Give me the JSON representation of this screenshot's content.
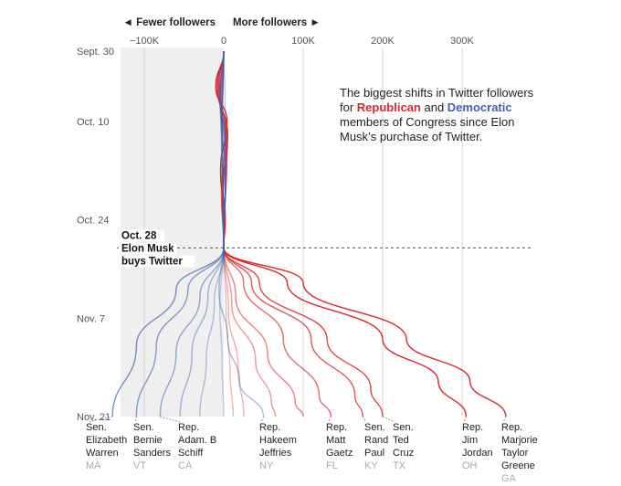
{
  "chart_data": {
    "type": "line",
    "title": "",
    "xlabel": "",
    "ylabel": "",
    "direction_labels": {
      "left": "◄ Fewer followers",
      "right": "More followers ►"
    },
    "x_ticks": [
      {
        "value": -100000,
        "label": "−100K"
      },
      {
        "value": 0,
        "label": "0"
      },
      {
        "value": 100000,
        "label": "100K"
      },
      {
        "value": 200000,
        "label": "200K"
      },
      {
        "value": 300000,
        "label": "300K"
      }
    ],
    "y_ticks": [
      {
        "date": "2022-09-30",
        "label": "Sept. 30"
      },
      {
        "date": "2022-10-10",
        "label": "Oct. 10"
      },
      {
        "date": "2022-10-24",
        "label": "Oct. 24"
      },
      {
        "date": "2022-11-07",
        "label": "Nov. 7"
      },
      {
        "date": "2022-11-21",
        "label": "Nov. 21"
      }
    ],
    "xlim": [
      -130000,
      380000
    ],
    "ylim": [
      "2022-09-30",
      "2022-11-21"
    ],
    "grid": true,
    "shaded_region": {
      "x_from": -130000,
      "x_to": 0
    },
    "event": {
      "date": "2022-10-28",
      "lines": [
        "Oct. 28",
        "Elon Musk",
        "buys Twitter"
      ]
    },
    "note": {
      "pre": "The biggest shifts in Twitter followers for ",
      "rep": "Republican",
      "mid": " and ",
      "dem": "Democratic",
      "post": " members of Congress since Elon Musk’s purchase of Twitter."
    },
    "colors": {
      "republican": "#d62a2e",
      "democratic": "#3e63b0",
      "shade": "#efefef"
    },
    "labeled_members": [
      {
        "title": "Sen.",
        "name": [
          "Elizabeth",
          "Warren"
        ],
        "state": "MA",
        "party": "D",
        "final": -140000
      },
      {
        "title": "Sen.",
        "name": [
          "Bernie",
          "Sanders"
        ],
        "state": "VT",
        "party": "D",
        "final": -110000
      },
      {
        "title": "Rep.",
        "name": [
          "Adam. B",
          "Schiff"
        ],
        "state": "CA",
        "party": "D",
        "final": -80000
      },
      {
        "title": "Rep.",
        "name": [
          "Hakeem",
          "Jeffries"
        ],
        "state": "NY",
        "party": "D",
        "final": 50000
      },
      {
        "title": "Rep.",
        "name": [
          "Matt",
          "Gaetz"
        ],
        "state": "FL",
        "party": "R",
        "final": 135000
      },
      {
        "title": "Sen.",
        "name": [
          "Rand",
          "Paul"
        ],
        "state": "KY",
        "party": "R",
        "final": 175000
      },
      {
        "title": "Sen.",
        "name": [
          "Ted",
          "Cruz"
        ],
        "state": "TX",
        "party": "R",
        "final": 200000
      },
      {
        "title": "Rep.",
        "name": [
          "Jim",
          "Jordan"
        ],
        "state": "OH",
        "party": "R",
        "final": 305000
      },
      {
        "title": "Rep.",
        "name": [
          "Marjorie",
          "Taylor",
          "Greene"
        ],
        "state": "GA",
        "party": "R",
        "final": 355000
      }
    ],
    "series": [
      {
        "party": "R",
        "final": 355000,
        "points": [
          [
            0,
            "2022-09-30"
          ],
          [
            -10000,
            "2022-10-05"
          ],
          [
            4000,
            "2022-10-10"
          ],
          [
            -4000,
            "2022-10-17"
          ],
          [
            2000,
            "2022-10-24"
          ],
          [
            0,
            "2022-10-28"
          ],
          [
            100000,
            "2022-11-02"
          ],
          [
            230000,
            "2022-11-10"
          ],
          [
            310000,
            "2022-11-16"
          ],
          [
            355000,
            "2022-11-21"
          ]
        ]
      },
      {
        "party": "R",
        "final": 305000,
        "points": [
          [
            0,
            "2022-09-30"
          ],
          [
            -8000,
            "2022-10-05"
          ],
          [
            5000,
            "2022-10-12"
          ],
          [
            -2000,
            "2022-10-20"
          ],
          [
            0,
            "2022-10-28"
          ],
          [
            80000,
            "2022-11-02"
          ],
          [
            200000,
            "2022-11-10"
          ],
          [
            270000,
            "2022-11-16"
          ],
          [
            305000,
            "2022-11-21"
          ]
        ]
      },
      {
        "party": "R",
        "final": 200000,
        "points": [
          [
            0,
            "2022-09-30"
          ],
          [
            -6000,
            "2022-10-05"
          ],
          [
            3000,
            "2022-10-12"
          ],
          [
            -1000,
            "2022-10-22"
          ],
          [
            0,
            "2022-10-28"
          ],
          [
            45000,
            "2022-11-02"
          ],
          [
            130000,
            "2022-11-10"
          ],
          [
            185000,
            "2022-11-17"
          ],
          [
            200000,
            "2022-11-21"
          ]
        ]
      },
      {
        "party": "R",
        "final": 175000,
        "points": [
          [
            0,
            "2022-09-30"
          ],
          [
            -5000,
            "2022-10-06"
          ],
          [
            4000,
            "2022-10-14"
          ],
          [
            0,
            "2022-10-28"
          ],
          [
            35000,
            "2022-11-02"
          ],
          [
            110000,
            "2022-11-10"
          ],
          [
            165000,
            "2022-11-18"
          ],
          [
            175000,
            "2022-11-21"
          ]
        ]
      },
      {
        "party": "R",
        "final": 135000,
        "points": [
          [
            0,
            "2022-09-30"
          ],
          [
            -7000,
            "2022-10-04"
          ],
          [
            2000,
            "2022-10-12"
          ],
          [
            -3000,
            "2022-10-20"
          ],
          [
            0,
            "2022-10-28"
          ],
          [
            25000,
            "2022-11-02"
          ],
          [
            75000,
            "2022-11-10"
          ],
          [
            120000,
            "2022-11-18"
          ],
          [
            135000,
            "2022-11-21"
          ]
        ]
      },
      {
        "party": "R",
        "final": 100000,
        "points": [
          [
            0,
            "2022-09-30"
          ],
          [
            -4000,
            "2022-10-06"
          ],
          [
            3000,
            "2022-10-15"
          ],
          [
            0,
            "2022-10-28"
          ],
          [
            15000,
            "2022-11-04"
          ],
          [
            55000,
            "2022-11-12"
          ],
          [
            90000,
            "2022-11-19"
          ],
          [
            100000,
            "2022-11-21"
          ]
        ]
      },
      {
        "party": "R",
        "final": 65000,
        "points": [
          [
            0,
            "2022-09-30"
          ],
          [
            -3000,
            "2022-10-08"
          ],
          [
            2000,
            "2022-10-18"
          ],
          [
            0,
            "2022-10-28"
          ],
          [
            10000,
            "2022-11-05"
          ],
          [
            40000,
            "2022-11-13"
          ],
          [
            60000,
            "2022-11-19"
          ],
          [
            65000,
            "2022-11-21"
          ]
        ]
      },
      {
        "party": "R",
        "final": 25000,
        "points": [
          [
            0,
            "2022-09-30"
          ],
          [
            -2000,
            "2022-10-10"
          ],
          [
            0,
            "2022-10-28"
          ],
          [
            6000,
            "2022-11-06"
          ],
          [
            18000,
            "2022-11-14"
          ],
          [
            25000,
            "2022-11-21"
          ]
        ]
      },
      {
        "party": "R",
        "final": 12000,
        "points": [
          [
            0,
            "2022-09-30"
          ],
          [
            -2000,
            "2022-10-12"
          ],
          [
            0,
            "2022-10-28"
          ],
          [
            3000,
            "2022-11-06"
          ],
          [
            8000,
            "2022-11-15"
          ],
          [
            12000,
            "2022-11-21"
          ]
        ]
      },
      {
        "party": "D",
        "final": 50000,
        "points": [
          [
            0,
            "2022-09-30"
          ],
          [
            -4000,
            "2022-10-05"
          ],
          [
            3000,
            "2022-10-15"
          ],
          [
            0,
            "2022-10-28"
          ],
          [
            -6000,
            "2022-11-03"
          ],
          [
            5000,
            "2022-11-10"
          ],
          [
            20000,
            "2022-11-16"
          ],
          [
            50000,
            "2022-11-21"
          ]
        ]
      },
      {
        "party": "D",
        "final": 0,
        "points": [
          [
            0,
            "2022-09-30"
          ],
          [
            2000,
            "2022-10-08"
          ],
          [
            -1000,
            "2022-10-20"
          ],
          [
            0,
            "2022-10-28"
          ],
          [
            -5000,
            "2022-11-05"
          ],
          [
            -2000,
            "2022-11-14"
          ],
          [
            0,
            "2022-11-21"
          ]
        ]
      },
      {
        "party": "D",
        "final": -30000,
        "points": [
          [
            0,
            "2022-09-30"
          ],
          [
            -3000,
            "2022-10-10"
          ],
          [
            0,
            "2022-10-28"
          ],
          [
            -12000,
            "2022-11-05"
          ],
          [
            -22000,
            "2022-11-13"
          ],
          [
            -30000,
            "2022-11-21"
          ]
        ]
      },
      {
        "party": "D",
        "final": -55000,
        "points": [
          [
            0,
            "2022-09-30"
          ],
          [
            -2000,
            "2022-10-10"
          ],
          [
            0,
            "2022-10-28"
          ],
          [
            -20000,
            "2022-11-04"
          ],
          [
            -40000,
            "2022-11-12"
          ],
          [
            -55000,
            "2022-11-21"
          ]
        ]
      },
      {
        "party": "D",
        "final": -80000,
        "points": [
          [
            0,
            "2022-09-30"
          ],
          [
            -3000,
            "2022-10-12"
          ],
          [
            0,
            "2022-10-28"
          ],
          [
            -30000,
            "2022-11-04"
          ],
          [
            -60000,
            "2022-11-12"
          ],
          [
            -80000,
            "2022-11-21"
          ]
        ]
      },
      {
        "party": "D",
        "final": -110000,
        "points": [
          [
            0,
            "2022-09-30"
          ],
          [
            -4000,
            "2022-10-08"
          ],
          [
            2000,
            "2022-10-18"
          ],
          [
            0,
            "2022-10-28"
          ],
          [
            -45000,
            "2022-11-03"
          ],
          [
            -85000,
            "2022-11-11"
          ],
          [
            -110000,
            "2022-11-21"
          ]
        ]
      },
      {
        "party": "D",
        "final": -140000,
        "points": [
          [
            0,
            "2022-09-30"
          ],
          [
            -5000,
            "2022-10-06"
          ],
          [
            3000,
            "2022-10-16"
          ],
          [
            0,
            "2022-10-28"
          ],
          [
            -60000,
            "2022-11-03"
          ],
          [
            -110000,
            "2022-11-11"
          ],
          [
            -140000,
            "2022-11-21"
          ]
        ]
      }
    ]
  }
}
